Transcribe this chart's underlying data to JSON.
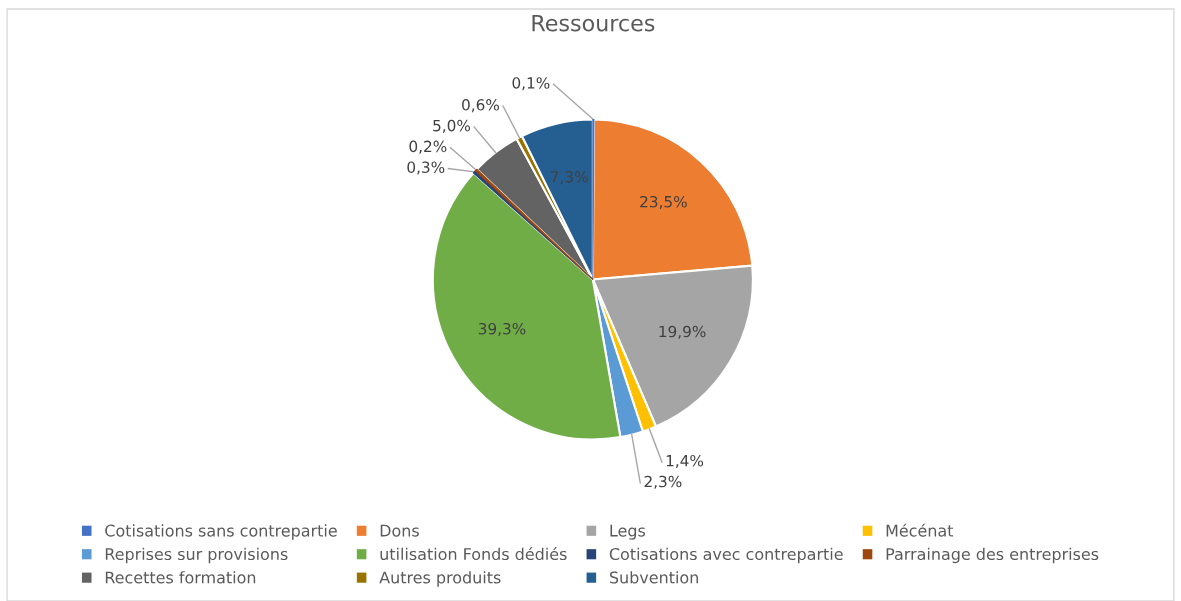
{
  "chart_data": {
    "type": "pie",
    "title": "Ressources",
    "categories": [
      "Cotisations sans contrepartie",
      "Dons",
      "Legs",
      "Mécénat",
      "Reprises sur provisions",
      "utilisation Fonds dédiés",
      "Cotisations avec contrepartie",
      "Parrainage des entreprises",
      "Recettes formation",
      "Autres produits",
      "Subvention"
    ],
    "values": [
      0.1,
      23.5,
      19.9,
      1.4,
      2.3,
      39.3,
      0.3,
      0.2,
      5.0,
      0.6,
      7.3
    ],
    "colors": [
      "#4472c4",
      "#ed7d31",
      "#a5a5a5",
      "#ffc000",
      "#5b9bd5",
      "#70ad47",
      "#264478",
      "#9e480e",
      "#636363",
      "#997300",
      "#255e91"
    ],
    "value_labels": [
      "0,1%",
      "23,5%",
      "19,9%",
      "1,4%",
      "2,3%",
      "39,3%",
      "0,3%",
      "0,2%",
      "5,0%",
      "0,6%",
      "7,3%"
    ],
    "legend": "bottom"
  }
}
